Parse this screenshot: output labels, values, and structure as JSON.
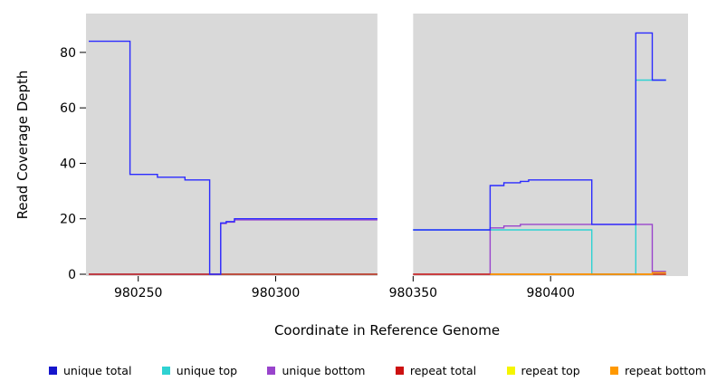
{
  "chart_data": {
    "type": "line",
    "subtype": "step-coverage-plot",
    "title": "",
    "xlabel": "Coordinate in Reference Genome",
    "ylabel": "Read Coverage Depth",
    "xlim": [
      980231,
      980450
    ],
    "ylim": [
      0,
      94
    ],
    "x_ticks": [
      980250,
      980300,
      980350,
      980400
    ],
    "y_ticks": [
      0,
      20,
      40,
      60,
      80
    ],
    "panel_bg": "#d9d9d9",
    "page_bg": "#ffffff",
    "gap_region": {
      "x_start": 980337,
      "x_end": 980350
    },
    "series": [
      {
        "name": "repeat top",
        "color": "#f5f500",
        "paths": [
          [
            [
              980232,
              0
            ],
            [
              980337,
              0
            ]
          ],
          [
            [
              980350,
              0
            ],
            [
              980442,
              0
            ]
          ]
        ]
      },
      {
        "name": "unique top",
        "color": "#2fd2d2",
        "paths": [
          [
            [
              980232,
              0
            ],
            [
              980337,
              0
            ]
          ],
          [
            [
              980350,
              16
            ],
            [
              980415,
              16
            ],
            [
              980415,
              0
            ],
            [
              980431,
              0
            ],
            [
              980431,
              70
            ],
            [
              980442,
              70
            ]
          ]
        ]
      },
      {
        "name": "unique bottom",
        "color": "#9944cc",
        "paths": [
          [
            [
              980232,
              0
            ],
            [
              980280,
              0
            ],
            [
              980280,
              18.3
            ],
            [
              980282,
              18.3
            ],
            [
              980282,
              18.8
            ],
            [
              980285,
              18.8
            ],
            [
              980285,
              19.6
            ],
            [
              980337,
              19.6
            ]
          ],
          [
            [
              980350,
              0
            ],
            [
              980378,
              0
            ],
            [
              980378,
              16.7
            ],
            [
              980383,
              16.7
            ],
            [
              980383,
              17.4
            ],
            [
              980389,
              17.4
            ],
            [
              980389,
              18
            ],
            [
              980437,
              18
            ],
            [
              980437,
              1
            ],
            [
              980442,
              1
            ]
          ]
        ]
      },
      {
        "name": "repeat total",
        "color": "#cc2222",
        "paths": [
          [
            [
              980232,
              0
            ],
            [
              980337,
              0
            ]
          ],
          [
            [
              980350,
              0
            ],
            [
              980442,
              0
            ]
          ]
        ]
      },
      {
        "name": "repeat bottom",
        "color": "#ff9900",
        "paths": [
          [
            [
              980378,
              0
            ],
            [
              980437,
              0
            ],
            [
              980437,
              0.6
            ],
            [
              980442,
              0.6
            ]
          ]
        ]
      },
      {
        "name": "unique total",
        "color": "#2b2bff",
        "paths": [
          [
            [
              980232,
              84
            ],
            [
              980247,
              84
            ],
            [
              980247,
              36
            ],
            [
              980257,
              36
            ],
            [
              980257,
              35
            ],
            [
              980267,
              35
            ],
            [
              980267,
              34
            ],
            [
              980276,
              34
            ],
            [
              980276,
              0
            ],
            [
              980280,
              0
            ],
            [
              980280,
              18.5
            ],
            [
              980282,
              18.5
            ],
            [
              980282,
              19
            ],
            [
              980285,
              19
            ],
            [
              980285,
              20
            ],
            [
              980337,
              20
            ]
          ],
          [
            [
              980350,
              16
            ],
            [
              980378,
              16
            ],
            [
              980378,
              32
            ],
            [
              980383,
              32
            ],
            [
              980383,
              33
            ],
            [
              980389,
              33
            ],
            [
              980389,
              33.5
            ],
            [
              980392,
              33.5
            ],
            [
              980392,
              34
            ],
            [
              980415,
              34
            ],
            [
              980415,
              18
            ],
            [
              980431,
              18
            ],
            [
              980431,
              87
            ],
            [
              980437,
              87
            ],
            [
              980437,
              70
            ],
            [
              980442,
              70
            ]
          ]
        ]
      }
    ],
    "legend": [
      {
        "label": "unique total",
        "color": "#1515cc"
      },
      {
        "label": "unique top",
        "color": "#2fd2d2"
      },
      {
        "label": "unique bottom",
        "color": "#9944cc"
      },
      {
        "label": "repeat total",
        "color": "#cc1111"
      },
      {
        "label": "repeat top",
        "color": "#f5f500"
      },
      {
        "label": "repeat bottom",
        "color": "#ff9900"
      }
    ],
    "legend_position": "bottom",
    "grid": false
  }
}
